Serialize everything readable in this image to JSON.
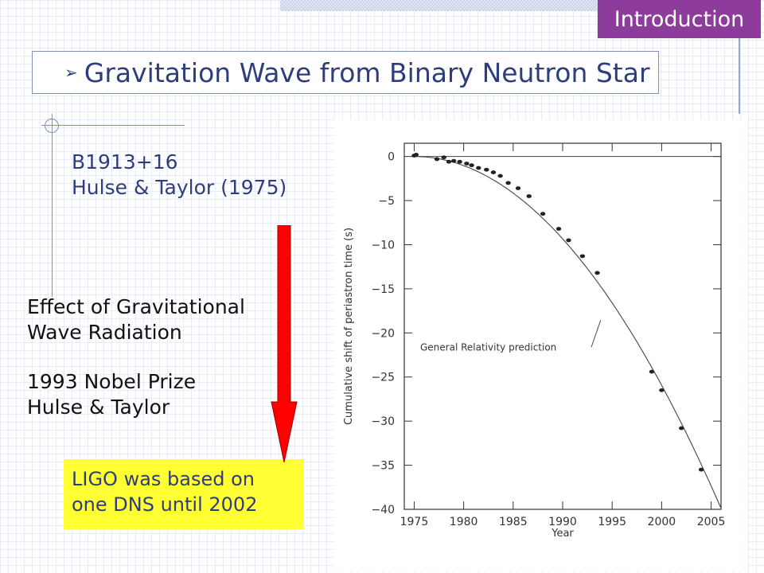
{
  "section_tag": "Introduction",
  "title": {
    "bullet": "➢",
    "text": "Gravitation Wave from Binary Neutron Star"
  },
  "pulsar": {
    "name": "B1913+16",
    "discovery": "Hulse & Taylor (1975)"
  },
  "effect": {
    "line1": "Effect of Gravitational",
    "line2": "Wave Radiation"
  },
  "nobel": {
    "line1": "1993 Nobel Prize",
    "line2": "Hulse & Taylor"
  },
  "ligo_note": {
    "line1": "LIGO was based on",
    "line2": "one DNS until 2002"
  },
  "colors": {
    "accent_purple": "#8e3c9b",
    "title_blue": "#2f3d7a",
    "highlight_yellow": "#ffff33",
    "arrow_red": "#ff0000"
  },
  "chart_data": {
    "type": "scatter",
    "xlabel": "Year",
    "ylabel": "Cumulative shift of periastron time (s)",
    "xlim": [
      1974,
      2006
    ],
    "ylim": [
      -40,
      1.5
    ],
    "x_ticks": [
      1975,
      1980,
      1985,
      1990,
      1995,
      2000,
      2005
    ],
    "y_ticks": [
      0,
      -5,
      -10,
      -15,
      -20,
      -25,
      -30,
      -35,
      -40
    ],
    "y_tick_labels": [
      "0",
      "−5",
      "−10",
      "−15",
      "−20",
      "−25",
      "−30",
      "−35",
      "−40"
    ],
    "annotation": "General Relativity prediction",
    "annotation_points_to": {
      "x": 1994,
      "y": -18.2
    },
    "curve": {
      "name": "General Relativity prediction",
      "t0": 1975,
      "coef": -0.0415,
      "x_range": [
        1975,
        2006
      ]
    },
    "baseline": 0,
    "points": [
      {
        "x": 1975.0,
        "y": 0.1
      },
      {
        "x": 1975.2,
        "y": 0.2
      },
      {
        "x": 1977.3,
        "y": -0.3
      },
      {
        "x": 1978.0,
        "y": -0.1
      },
      {
        "x": 1978.5,
        "y": -0.6
      },
      {
        "x": 1979.0,
        "y": -0.5
      },
      {
        "x": 1979.6,
        "y": -0.6
      },
      {
        "x": 1980.3,
        "y": -0.8
      },
      {
        "x": 1980.8,
        "y": -1.0
      },
      {
        "x": 1981.5,
        "y": -1.3
      },
      {
        "x": 1982.3,
        "y": -1.5
      },
      {
        "x": 1983.0,
        "y": -1.8
      },
      {
        "x": 1983.7,
        "y": -2.2
      },
      {
        "x": 1984.5,
        "y": -3.0
      },
      {
        "x": 1985.5,
        "y": -3.6
      },
      {
        "x": 1986.6,
        "y": -4.5
      },
      {
        "x": 1988.0,
        "y": -6.5
      },
      {
        "x": 1989.6,
        "y": -8.2
      },
      {
        "x": 1990.6,
        "y": -9.5
      },
      {
        "x": 1992.0,
        "y": -11.3
      },
      {
        "x": 1993.5,
        "y": -13.2
      },
      {
        "x": 1999.0,
        "y": -24.4
      },
      {
        "x": 2000.0,
        "y": -26.5
      },
      {
        "x": 2002.0,
        "y": -30.8
      },
      {
        "x": 2004.0,
        "y": -35.5
      }
    ]
  }
}
